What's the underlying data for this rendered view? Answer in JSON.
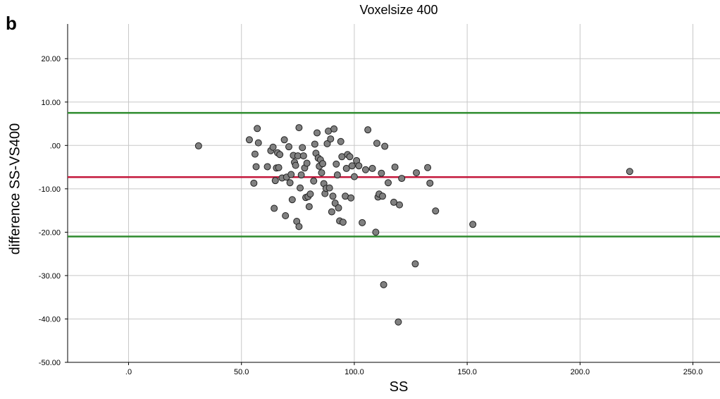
{
  "panel_label": "b",
  "chart_data": {
    "type": "scatter",
    "title": "Voxelsize 400",
    "xlabel": "SS",
    "ylabel": "difference SS-VS400",
    "xlim": [
      -27,
      262
    ],
    "ylim": [
      -50,
      28
    ],
    "x_ticks": [
      0,
      50,
      100,
      150,
      200,
      250
    ],
    "x_tick_labels": [
      ".0",
      "50.0",
      "100.0",
      "150.0",
      "200.0",
      "250.0"
    ],
    "y_ticks": [
      20,
      10,
      0,
      -10,
      -20,
      -30,
      -40,
      -50
    ],
    "y_tick_labels": [
      "20.00",
      "10.00",
      ".00",
      "-10.00",
      "-20.00",
      "-30.00",
      "-40.00",
      "-50.00"
    ],
    "grid": true,
    "colors": {
      "points": "#808080",
      "mean_line": "#c4183c",
      "limit_lines": "#2e8b2e",
      "grid": "#c8c8c8"
    },
    "reference_lines": [
      {
        "role": "upper limit",
        "y": 7.5
      },
      {
        "role": "mean",
        "y": -7.3
      },
      {
        "role": "lower limit",
        "y": -21.0
      }
    ],
    "points": [
      [
        31,
        -0.1
      ],
      [
        53.5,
        1.3
      ],
      [
        55.5,
        -8.7
      ],
      [
        56,
        -2
      ],
      [
        56.5,
        -4.9
      ],
      [
        57,
        3.9
      ],
      [
        57.5,
        0.6
      ],
      [
        61.5,
        -4.9
      ],
      [
        63,
        -1.2
      ],
      [
        64,
        -0.4
      ],
      [
        64.5,
        -14.5
      ],
      [
        65,
        -8.1
      ],
      [
        65.5,
        -5.2
      ],
      [
        66,
        -1.7
      ],
      [
        66.5,
        -5.1
      ],
      [
        67,
        -2.1
      ],
      [
        68,
        -7.5
      ],
      [
        69,
        1.3
      ],
      [
        69.5,
        -16.2
      ],
      [
        70,
        -7.3
      ],
      [
        71,
        -0.3
      ],
      [
        71.5,
        -8.6
      ],
      [
        72,
        -6.7
      ],
      [
        72.5,
        -12.5
      ],
      [
        73,
        -2.3
      ],
      [
        73.5,
        -3.9
      ],
      [
        74,
        -4.6
      ],
      [
        74.5,
        -17.5
      ],
      [
        75,
        -2.4
      ],
      [
        75.5,
        -18.7
      ],
      [
        75.5,
        4.1
      ],
      [
        76,
        -9.8
      ],
      [
        76.5,
        -6.8
      ],
      [
        77,
        -0.5
      ],
      [
        77.5,
        -2.4
      ],
      [
        78,
        -5.2
      ],
      [
        78.5,
        -12
      ],
      [
        79,
        -4.1
      ],
      [
        79.5,
        -11.8
      ],
      [
        80,
        -14.1
      ],
      [
        80.5,
        -11.2
      ],
      [
        82,
        -8.2
      ],
      [
        82.5,
        0.3
      ],
      [
        83,
        -1.8
      ],
      [
        83.5,
        2.9
      ],
      [
        84,
        -2.9
      ],
      [
        84.5,
        -4.8
      ],
      [
        85,
        -3.3
      ],
      [
        85.5,
        -6.3
      ],
      [
        86,
        -4.2
      ],
      [
        86.5,
        -8.8
      ],
      [
        87,
        -11.1
      ],
      [
        87.5,
        -9.9
      ],
      [
        88,
        0.4
      ],
      [
        88.5,
        3.3
      ],
      [
        89,
        -9.8
      ],
      [
        89.5,
        1.5
      ],
      [
        90,
        -15.3
      ],
      [
        90.5,
        -11.7
      ],
      [
        91,
        3.8
      ],
      [
        91.5,
        -13.3
      ],
      [
        92,
        -4.3
      ],
      [
        92.5,
        -6.8
      ],
      [
        93,
        -14.4
      ],
      [
        93.5,
        -17.4
      ],
      [
        94,
        0.9
      ],
      [
        94.5,
        -2.6
      ],
      [
        95,
        -17.7
      ],
      [
        96,
        -11.7
      ],
      [
        96.5,
        -5.3
      ],
      [
        97,
        -2.1
      ],
      [
        98,
        -2.6
      ],
      [
        98.5,
        -12.1
      ],
      [
        99,
        -4.7
      ],
      [
        100,
        -7.2
      ],
      [
        101,
        -3.5
      ],
      [
        102,
        -4.7
      ],
      [
        103.5,
        -17.8
      ],
      [
        105,
        -5.6
      ],
      [
        106,
        3.6
      ],
      [
        108,
        -5.3
      ],
      [
        109.5,
        -20
      ],
      [
        110,
        0.5
      ],
      [
        110.5,
        -11.9
      ],
      [
        111,
        -11.2
      ],
      [
        112,
        -6.4
      ],
      [
        112.5,
        -11.7
      ],
      [
        113,
        -32.1
      ],
      [
        113.5,
        -0.2
      ],
      [
        115,
        -8.6
      ],
      [
        117.5,
        -13.1
      ],
      [
        118,
        -5
      ],
      [
        119.5,
        -40.7
      ],
      [
        120,
        -13.7
      ],
      [
        121,
        -7.6
      ],
      [
        127,
        -27.3
      ],
      [
        127.5,
        -6.3
      ],
      [
        132.5,
        -5.1
      ],
      [
        133.5,
        -8.7
      ],
      [
        136,
        -15.1
      ],
      [
        152.5,
        -18.2
      ],
      [
        222,
        -6
      ]
    ]
  }
}
